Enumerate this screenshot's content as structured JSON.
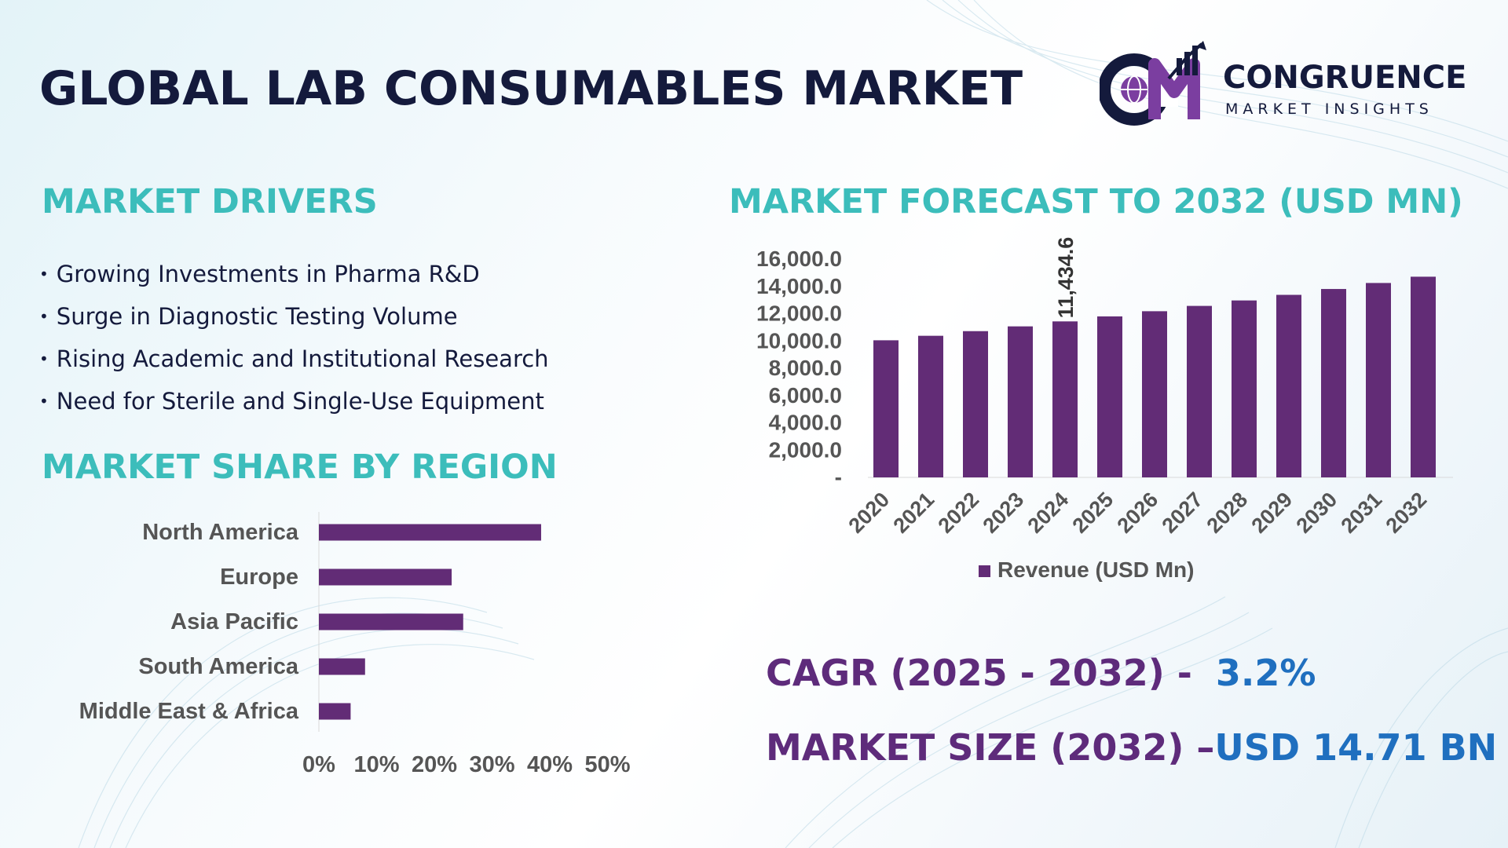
{
  "title": "GLOBAL LAB CONSUMABLES MARKET",
  "logo": {
    "monogram": "CM",
    "name": "CONGRUENCE",
    "tagline": "MARKET INSIGHTS"
  },
  "drivers": {
    "title": "MARKET DRIVERS",
    "items": [
      "Growing Investments in Pharma R&D",
      "Surge in Diagnostic Testing Volume",
      "Rising Academic and Institutional Research",
      "Need for Sterile and Single-Use Equipment"
    ]
  },
  "region": {
    "title": "MARKET SHARE BY REGION"
  },
  "forecast": {
    "title": "MARKET FORECAST TO 2032 (USD MN)"
  },
  "kpis": {
    "cagr_label": "CAGR (2025 - 2032) -",
    "cagr_value": "3.2%",
    "size_label": "MARKET SIZE (2032) –",
    "size_value": "USD 14.71 BN"
  },
  "colors": {
    "bar": "#622c76",
    "title_dark": "#141a3c",
    "section_teal": "#3cbdbb",
    "kpi_purple": "#5e2b7b",
    "kpi_blue": "#1f6fbf"
  },
  "chart_data": [
    {
      "type": "bar",
      "orientation": "horizontal",
      "categories": [
        "North America",
        "Europe",
        "Asia Pacific",
        "South America",
        "Middle East & Africa"
      ],
      "values": [
        38.5,
        23,
        25,
        8,
        5.5
      ],
      "xlim": [
        0,
        50
      ],
      "tick_labels": [
        "0%",
        "10%",
        "20%",
        "30%",
        "40%",
        "50%"
      ],
      "grid": false
    },
    {
      "type": "bar",
      "categories": [
        "2020",
        "2021",
        "2022",
        "2023",
        "2024",
        "2025",
        "2026",
        "2027",
        "2028",
        "2029",
        "2030",
        "2031",
        "2032"
      ],
      "series": [
        {
          "name": "Revenue (USD Mn)",
          "values": [
            10050,
            10380,
            10720,
            11070,
            11434.6,
            11800,
            12180,
            12570,
            12970,
            13380,
            13810,
            14250,
            14710
          ]
        }
      ],
      "ylim": [
        0,
        16000
      ],
      "tick_labels": [
        "-",
        "2,000.0",
        "4,000.0",
        "6,000.0",
        "8,000.0",
        "10,000.0",
        "12,000.0",
        "14,000.0",
        "16,000.0"
      ],
      "data_labels": [
        {
          "index": 4,
          "text": "11,434.6"
        }
      ],
      "legend": "bottom",
      "grid": false
    }
  ]
}
